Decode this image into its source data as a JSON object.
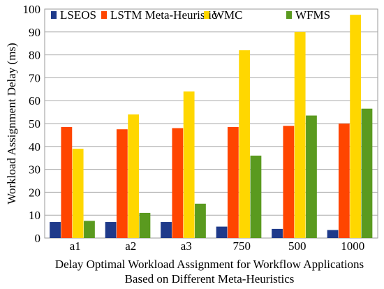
{
  "chart_data": {
    "type": "bar",
    "categories": [
      "a1",
      "a2",
      "a3",
      "750",
      "500",
      "1000"
    ],
    "series": [
      {
        "name": "LSEOS",
        "color": "#1f3a8a",
        "values": [
          7,
          7,
          7,
          5,
          4,
          3.5
        ]
      },
      {
        "name": "LSTM Meta-Heuristic",
        "color": "#ff4500",
        "values": [
          48.5,
          47.5,
          48,
          48.5,
          49,
          50
        ]
      },
      {
        "name": "WMC",
        "color": "#ffd700",
        "values": [
          39,
          54,
          64,
          82,
          90,
          97.5
        ]
      },
      {
        "name": "WFMS",
        "color": "#5a9a1f",
        "values": [
          7.5,
          11,
          15,
          36,
          53.5,
          56.5
        ]
      }
    ],
    "ylabel": "Workload Assignment Delay (ms)",
    "xlabel_lines": [
      "Delay Optimal Workload Assignment for Workflow Applications",
      "Based on Different Meta-Heuristics"
    ],
    "ylim": [
      0,
      100
    ],
    "yticks": [
      0,
      10,
      20,
      30,
      40,
      50,
      60,
      70,
      80,
      90,
      100
    ],
    "grid": true,
    "legend_position": "top"
  }
}
